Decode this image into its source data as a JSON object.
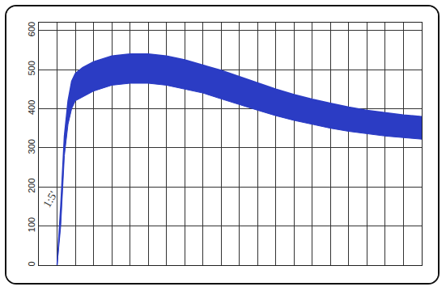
{
  "chart_data": {
    "type": "band",
    "x": [
      0,
      1,
      2,
      3,
      4,
      5,
      7,
      10,
      15,
      20,
      25,
      30,
      35,
      40,
      45,
      50,
      55,
      60,
      65,
      70,
      75,
      80,
      85,
      90,
      95,
      100
    ],
    "high": [
      0,
      150,
      330,
      420,
      470,
      490,
      505,
      520,
      535,
      540,
      540,
      535,
      525,
      512,
      498,
      482,
      466,
      450,
      436,
      424,
      414,
      404,
      396,
      390,
      384,
      380
    ],
    "low": [
      0,
      100,
      280,
      360,
      400,
      420,
      430,
      445,
      460,
      465,
      465,
      460,
      450,
      440,
      425,
      410,
      396,
      382,
      370,
      360,
      350,
      342,
      336,
      330,
      326,
      322
    ],
    "color": "#2b3cc4",
    "xlim": [
      -5,
      100
    ],
    "xticks": [
      -5,
      0,
      5,
      10,
      15,
      20,
      25,
      30,
      35,
      40,
      45,
      50,
      55,
      60,
      65,
      70,
      75,
      80,
      85,
      90,
      95,
      100
    ],
    "ylim": [
      0,
      620
    ],
    "yticks": [
      0,
      100,
      200,
      300,
      400,
      500,
      600
    ],
    "annotations": [
      {
        "text": "1:5'"
      }
    ],
    "grid": true,
    "tick_labels": "y"
  }
}
